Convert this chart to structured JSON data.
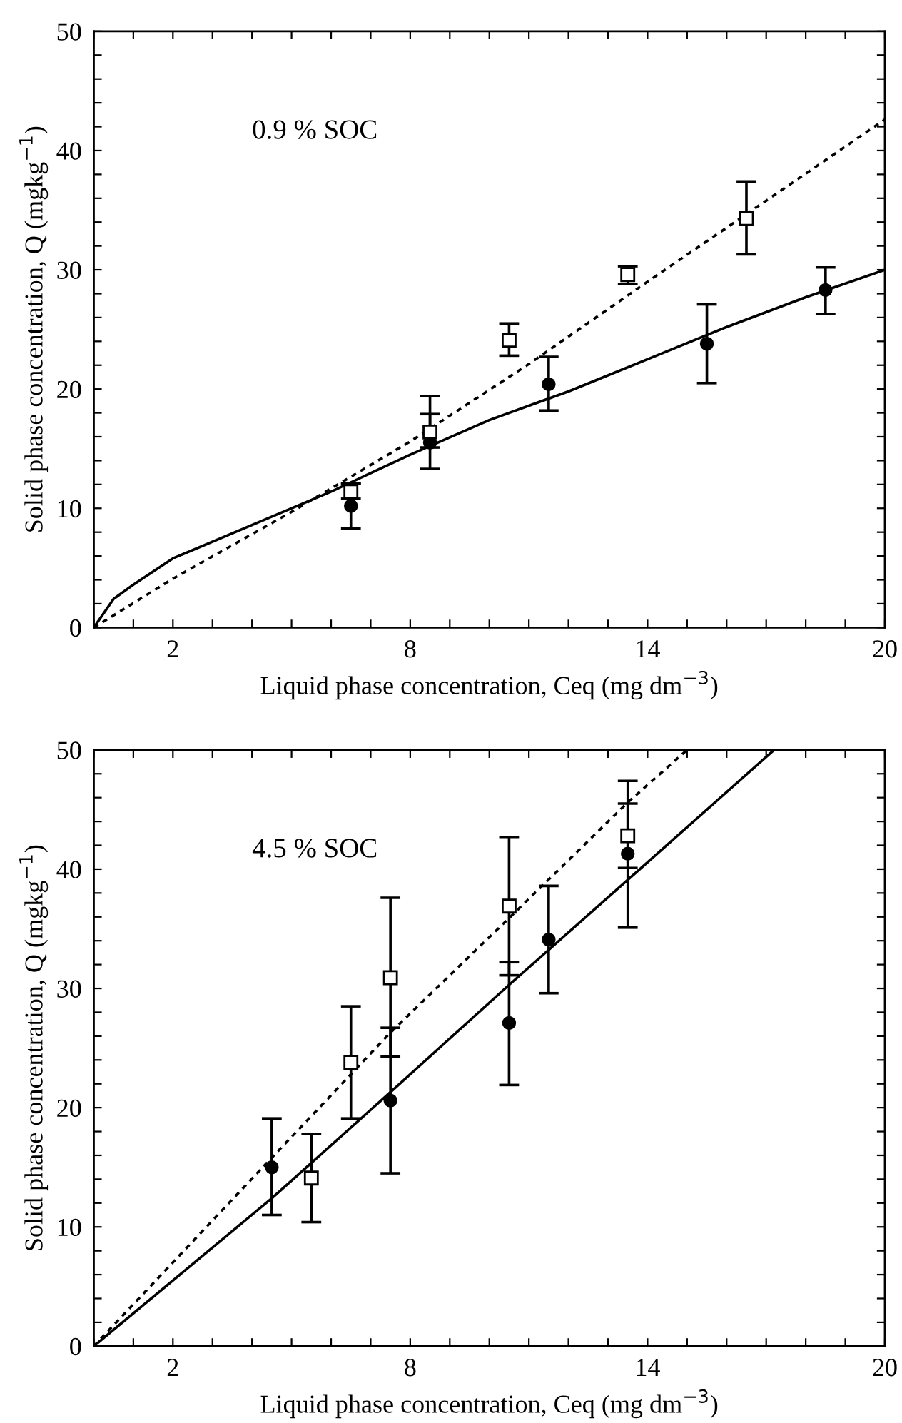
{
  "chart_data": [
    {
      "type": "line",
      "xlabel": "Liquid phase concentration, Ceq (mg dm$^{−3}$)",
      "ylabel": "Solid phase concentration, Q (mgkg$^{−1}$)",
      "annotations": [
        "0.9 % SOC"
      ],
      "xlim": [
        0,
        20
      ],
      "ylim": [
        0,
        50
      ],
      "xticks": [
        {
          "value": 0,
          "label": null
        },
        {
          "value": 1,
          "label": null
        },
        2,
        {
          "value": 3,
          "label": null
        },
        {
          "value": 4,
          "label": null
        },
        {
          "value": 5,
          "label": null
        },
        {
          "value": 6,
          "label": null
        },
        {
          "value": 7,
          "label": null
        },
        8,
        {
          "value": 9,
          "label": null
        },
        {
          "value": 10,
          "label": null
        },
        {
          "value": 11,
          "label": null
        },
        {
          "value": 12,
          "label": null
        },
        {
          "value": 13,
          "label": null
        },
        14,
        {
          "value": 15,
          "label": null
        },
        {
          "value": 16,
          "label": null
        },
        {
          "value": 17,
          "label": null
        },
        {
          "value": 18,
          "label": null
        },
        {
          "value": 19,
          "label": null
        },
        20
      ],
      "yticks": [
        0,
        {
          "value": 2,
          "label": null
        },
        {
          "value": 4,
          "label": null
        },
        {
          "value": 6,
          "label": null
        },
        {
          "value": 8,
          "label": null
        },
        10,
        {
          "value": 12,
          "label": null
        },
        {
          "value": 14,
          "label": null
        },
        {
          "value": 16,
          "label": null
        },
        {
          "value": 18,
          "label": null
        },
        20,
        {
          "value": 22,
          "label": null
        },
        {
          "value": 24,
          "label": null
        },
        {
          "value": 26,
          "label": null
        },
        {
          "value": 28,
          "label": null
        },
        30,
        {
          "value": 32,
          "label": null
        },
        {
          "value": 34,
          "label": null
        },
        {
          "value": 36,
          "label": null
        },
        {
          "value": 38,
          "label": null
        },
        40,
        {
          "value": 42,
          "label": null
        },
        {
          "value": 44,
          "label": null
        },
        {
          "value": 46,
          "label": null
        },
        {
          "value": 48,
          "label": null
        },
        50
      ],
      "series": [
        {
          "type": "scatter",
          "marker": "circle",
          "color": "#000000",
          "x": [
            6.5,
            8.5,
            11.5,
            15.5,
            18.5
          ],
          "values": [
            10.2,
            15.5,
            20.4,
            23.8,
            28.3
          ],
          "errors": [
            1.9,
            [
              13.3,
              17.9
            ],
            [
              18.2,
              22.7
            ],
            [
              20.5,
              27.1
            ],
            [
              26.3,
              30.2
            ]
          ]
        },
        {
          "type": "scatter",
          "marker": "square",
          "color": "#000000",
          "x": [
            6.5,
            8.5,
            10.5,
            13.5,
            16.5
          ],
          "values": [
            11.4,
            16.4,
            24.1,
            29.6,
            34.3
          ],
          "errors": [
            [
              10.8,
              12.1
            ],
            [
              15.1,
              19.4
            ],
            [
              22.8,
              25.5
            ],
            [
              28.8,
              30.3
            ],
            [
              31.3,
              37.4
            ]
          ]
        },
        {
          "marker": "none",
          "line_style": "solid",
          "color": "#000000",
          "x": [
            0,
            0.5,
            1,
            2,
            4,
            6,
            8,
            10,
            12,
            14,
            16,
            18,
            20
          ],
          "values": [
            0,
            2.4,
            3.6,
            5.8,
            8.6,
            11.4,
            14.5,
            17.4,
            19.8,
            22.5,
            25.2,
            27.7,
            30.0
          ]
        },
        {
          "marker": "none",
          "line_style": "dotted",
          "color": "#000000",
          "x": [
            0,
            2,
            5,
            8,
            11,
            14,
            17,
            20
          ],
          "values": [
            0,
            4.1,
            9.7,
            15.6,
            22.1,
            29.0,
            35.8,
            42.6
          ]
        }
      ]
    },
    {
      "type": "line",
      "xlabel": "Liquid phase concentration, Ceq (mg dm$^{−3}$)",
      "ylabel": "Solid phase concentration, Q (mgkg$^{−1}$)",
      "annotations": [
        "4.5 % SOC"
      ],
      "xlim": [
        0,
        20
      ],
      "ylim": [
        0,
        50
      ],
      "xticks": [
        {
          "value": 0,
          "label": null
        },
        {
          "value": 1,
          "label": null
        },
        2,
        {
          "value": 3,
          "label": null
        },
        {
          "value": 4,
          "label": null
        },
        {
          "value": 5,
          "label": null
        },
        {
          "value": 6,
          "label": null
        },
        {
          "value": 7,
          "label": null
        },
        8,
        {
          "value": 9,
          "label": null
        },
        {
          "value": 10,
          "label": null
        },
        {
          "value": 11,
          "label": null
        },
        {
          "value": 12,
          "label": null
        },
        {
          "value": 13,
          "label": null
        },
        14,
        {
          "value": 15,
          "label": null
        },
        {
          "value": 16,
          "label": null
        },
        {
          "value": 17,
          "label": null
        },
        {
          "value": 18,
          "label": null
        },
        {
          "value": 19,
          "label": null
        },
        20
      ],
      "yticks": [
        0,
        {
          "value": 2,
          "label": null
        },
        {
          "value": 4,
          "label": null
        },
        {
          "value": 6,
          "label": null
        },
        {
          "value": 8,
          "label": null
        },
        10,
        {
          "value": 12,
          "label": null
        },
        {
          "value": 14,
          "label": null
        },
        {
          "value": 16,
          "label": null
        },
        {
          "value": 18,
          "label": null
        },
        20,
        {
          "value": 22,
          "label": null
        },
        {
          "value": 24,
          "label": null
        },
        {
          "value": 26,
          "label": null
        },
        {
          "value": 28,
          "label": null
        },
        30,
        {
          "value": 32,
          "label": null
        },
        {
          "value": 34,
          "label": null
        },
        {
          "value": 36,
          "label": null
        },
        {
          "value": 38,
          "label": null
        },
        40,
        {
          "value": 42,
          "label": null
        },
        {
          "value": 44,
          "label": null
        },
        {
          "value": 46,
          "label": null
        },
        {
          "value": 48,
          "label": null
        },
        50
      ],
      "series": [
        {
          "type": "scatter",
          "marker": "circle",
          "color": "#000000",
          "x": [
            4.5,
            7.5,
            10.5,
            11.5,
            13.5
          ],
          "values": [
            15.0,
            20.6,
            27.1,
            34.1,
            41.3
          ],
          "errors": [
            [
              11.0,
              19.1
            ],
            [
              14.5,
              26.7
            ],
            [
              21.9,
              32.2
            ],
            [
              29.6,
              38.6
            ],
            [
              35.1,
              45.5
            ]
          ]
        },
        {
          "type": "scatter",
          "marker": "square",
          "color": "#000000",
          "x": [
            5.5,
            6.5,
            7.5,
            10.5,
            13.5
          ],
          "values": [
            14.1,
            23.8,
            30.9,
            36.9,
            42.8
          ],
          "errors": [
            [
              10.4,
              17.8
            ],
            [
              19.1,
              28.5
            ],
            [
              24.3,
              37.6
            ],
            [
              31.1,
              42.7
            ],
            [
              40.1,
              47.4
            ]
          ]
        },
        {
          "marker": "none",
          "line_style": "solid",
          "color": "#000000",
          "x": [
            0,
            4.5,
            7.5,
            10.5,
            13.5,
            17.2
          ],
          "values": [
            0,
            12.4,
            21.3,
            30.3,
            39.1,
            50
          ]
        },
        {
          "marker": "none",
          "line_style": "dotted",
          "color": "#000000",
          "x": [
            0,
            4.5,
            7.5,
            10.5,
            13.5,
            15.0
          ],
          "values": [
            0,
            15.8,
            26.3,
            35.9,
            45.6,
            50
          ]
        }
      ]
    }
  ]
}
